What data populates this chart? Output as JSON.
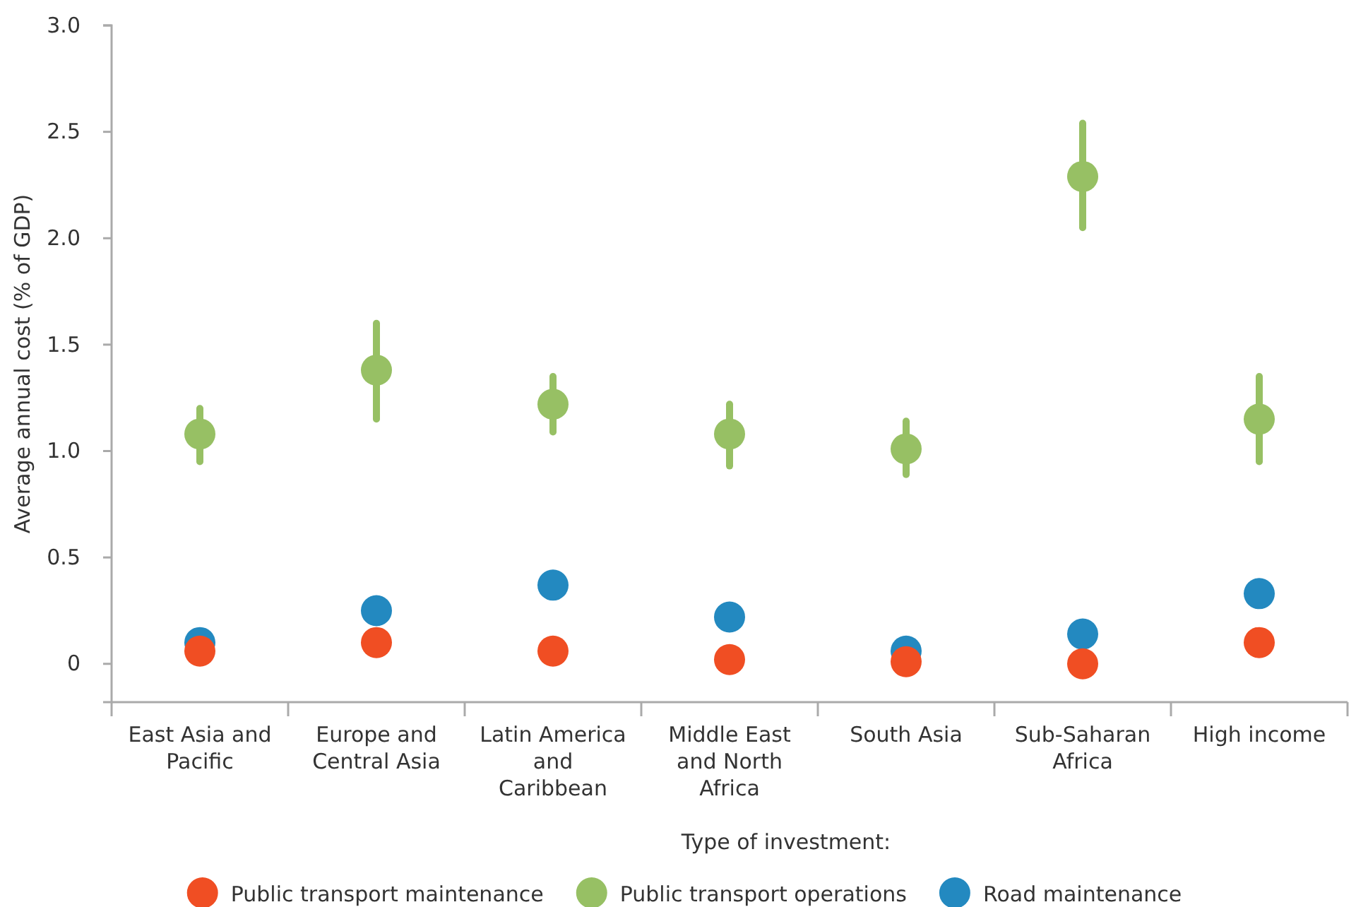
{
  "chart_data": {
    "type": "scatter",
    "xlabel": "Type of investment:",
    "ylabel": "Average annual cost (% of GDP)",
    "categories": [
      "East Asia and Pacific",
      "Europe and Central Asia",
      "Latin America and Caribbean",
      "Middle East and North Africa",
      "South Asia",
      "Sub-Saharan Africa",
      "High income"
    ],
    "series": [
      {
        "name": "Public transport maintenance",
        "color": "#f04e23",
        "values": [
          0.06,
          0.1,
          0.06,
          0.02,
          0.01,
          0.0,
          0.1
        ]
      },
      {
        "name": "Public transport operations",
        "color": "#97c064",
        "values": [
          1.08,
          1.38,
          1.22,
          1.08,
          1.01,
          2.29,
          1.15
        ],
        "errors": [
          [
            0.95,
            1.2
          ],
          [
            1.15,
            1.6
          ],
          [
            1.09,
            1.35
          ],
          [
            0.93,
            1.22
          ],
          [
            0.89,
            1.14
          ],
          [
            2.05,
            2.54
          ],
          [
            0.95,
            1.35
          ]
        ]
      },
      {
        "name": "Road maintenance",
        "color": "#2389c0",
        "values": [
          0.1,
          0.25,
          0.37,
          0.22,
          0.06,
          0.14,
          0.33
        ]
      }
    ],
    "ylim": [
      -0.18,
      3.0
    ],
    "yticks": [
      {
        "value": 0,
        "label": "0"
      },
      {
        "value": 0.5,
        "label": "0.5"
      },
      {
        "value": 1,
        "label": "1.0"
      },
      {
        "value": 1.5,
        "label": "1.5"
      },
      {
        "value": 2,
        "label": "2.0"
      },
      {
        "value": 2.5,
        "label": "2.5"
      },
      {
        "value": 3,
        "label": "3.0"
      }
    ],
    "grid": false,
    "legend": "bottom",
    "marker": "circle"
  }
}
